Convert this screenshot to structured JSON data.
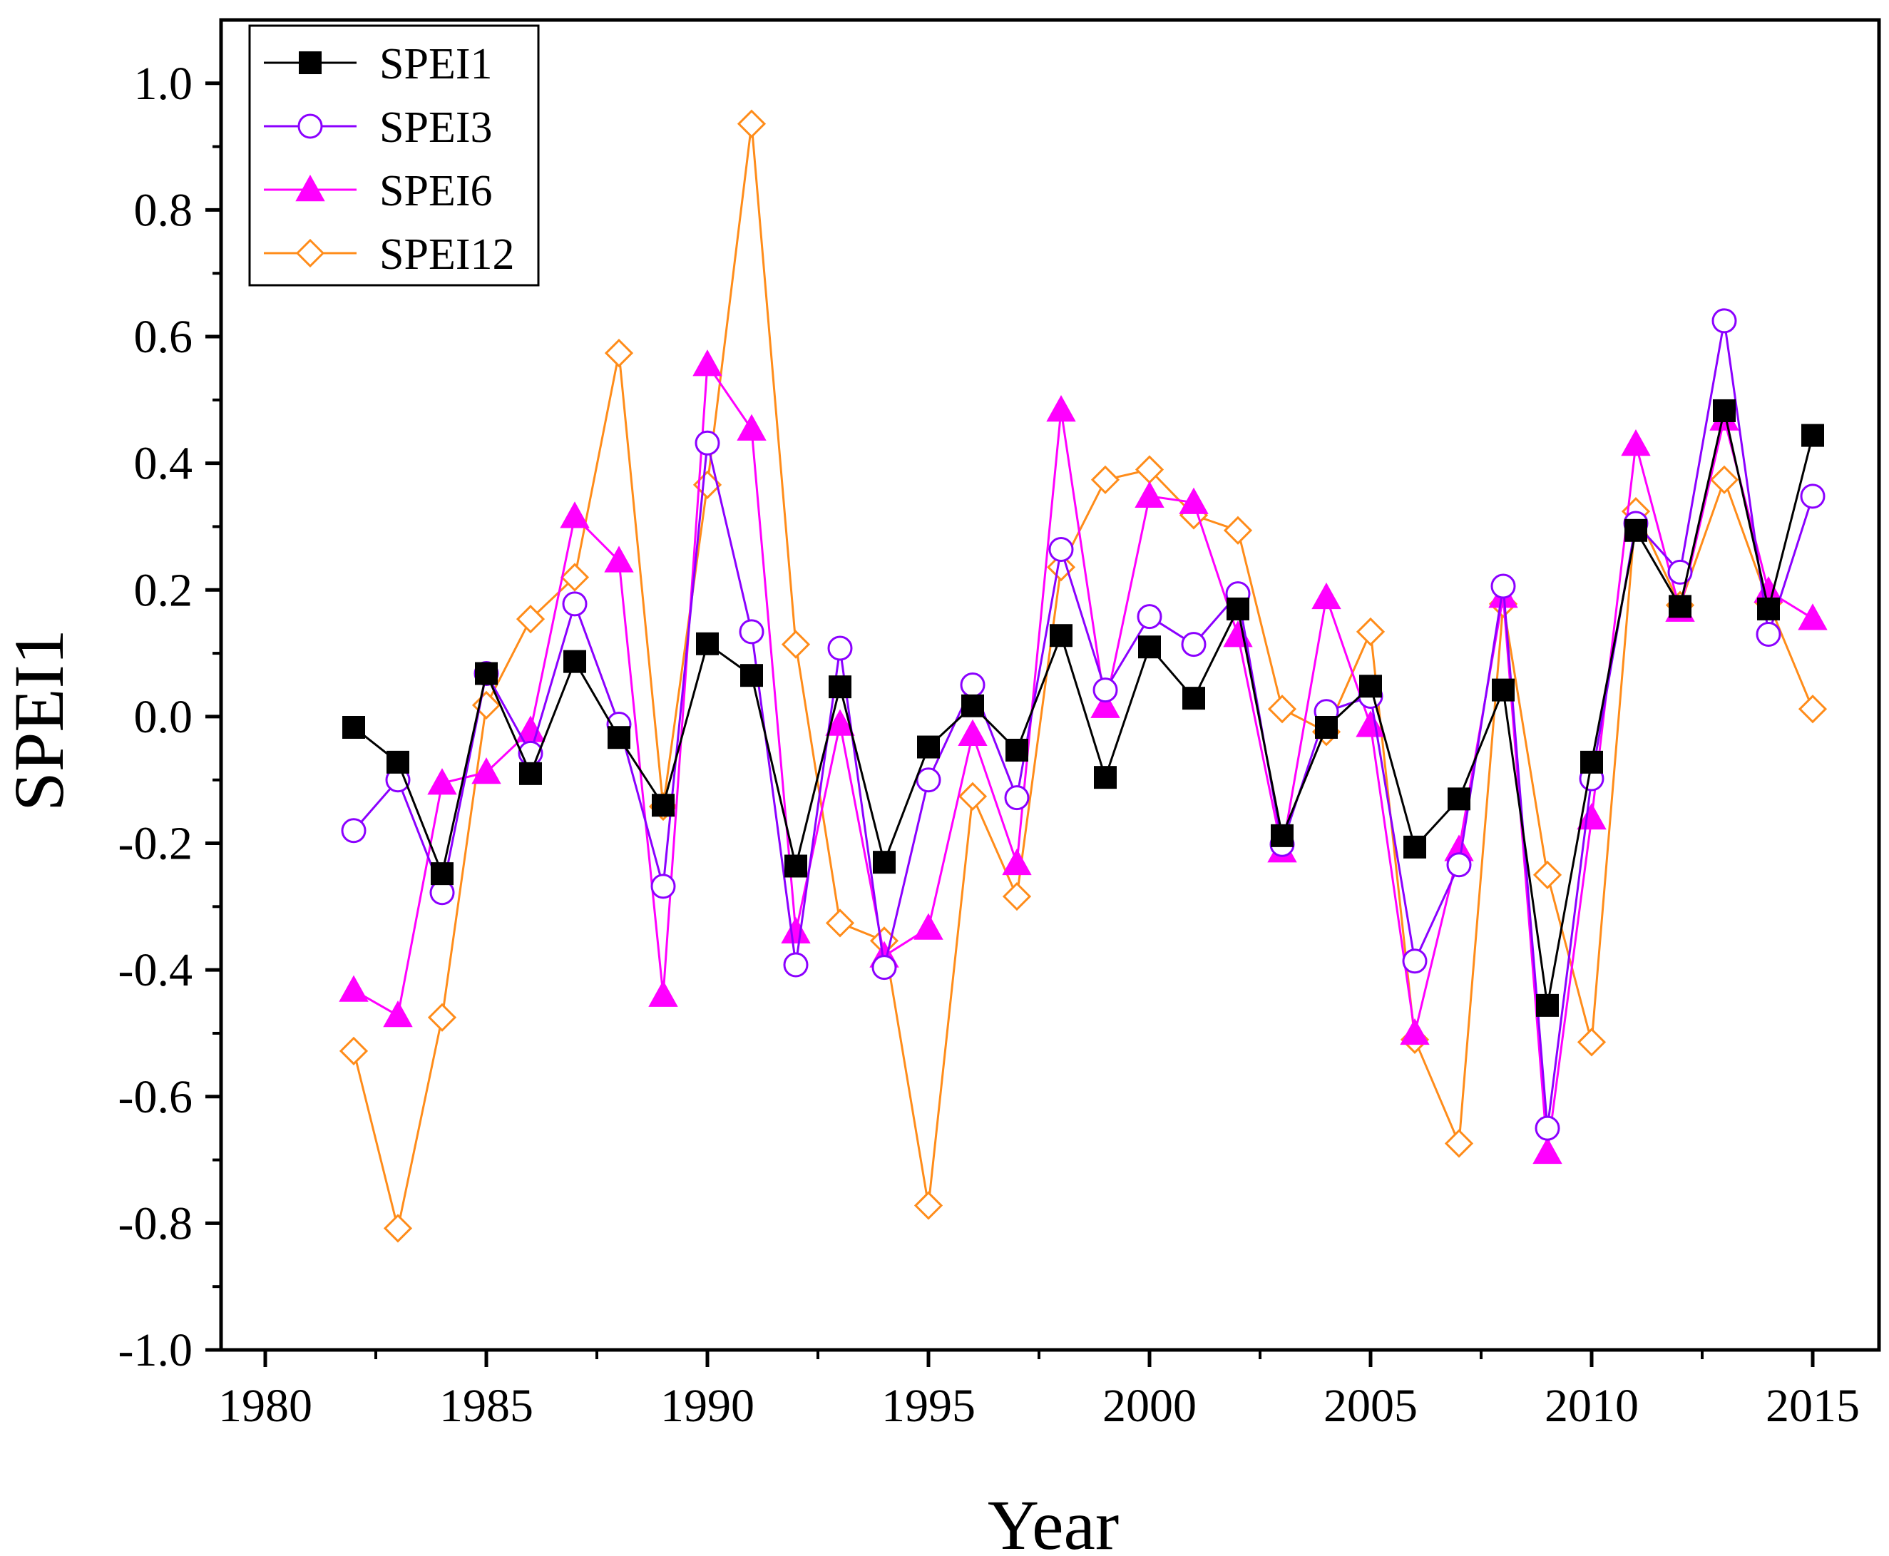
{
  "chart_data": {
    "type": "line",
    "title": "",
    "xlabel": "Year",
    "ylabel": "SPEI1",
    "xlim": [
      1979,
      2016.5
    ],
    "ylim": [
      -1.0,
      1.1
    ],
    "x_ticks": [
      1980,
      1985,
      1990,
      1995,
      2000,
      2005,
      2010,
      2015
    ],
    "y_ticks": [
      -1.0,
      -0.8,
      -0.6,
      -0.4,
      -0.2,
      0.0,
      0.2,
      0.4,
      0.6,
      0.8,
      1.0
    ],
    "y_tick_labels": [
      "-1.0",
      "-0.8",
      "-0.6",
      "-0.4",
      "-0.2",
      "0.0",
      "0.2",
      "0.4",
      "0.6",
      "0.8",
      "1.0"
    ],
    "grid": false,
    "legend_position": "top-left",
    "x": [
      1982,
      1983,
      1984,
      1985,
      1986,
      1987,
      1988,
      1989,
      1990,
      1991,
      1992,
      1993,
      1994,
      1995,
      1996,
      1997,
      1998,
      1999,
      2000,
      2001,
      2002,
      2003,
      2004,
      2005,
      2006,
      2007,
      2008,
      2009,
      2010,
      2011,
      2012,
      2013,
      2014,
      2015
    ],
    "series": [
      {
        "name": "SPEI1",
        "color": "#000000",
        "marker": "square-filled",
        "values": [
          -0.017,
          -0.072,
          -0.248,
          0.068,
          -0.09,
          0.087,
          -0.033,
          -0.14,
          0.115,
          0.065,
          -0.236,
          0.047,
          -0.23,
          -0.048,
          0.017,
          -0.053,
          0.128,
          -0.096,
          0.11,
          0.029,
          0.17,
          -0.188,
          -0.017,
          0.048,
          -0.206,
          -0.13,
          0.042,
          -0.456,
          -0.072,
          0.294,
          0.174,
          0.483,
          0.17,
          0.444
        ]
      },
      {
        "name": "SPEI3",
        "color": "#8B00FF",
        "marker": "circle-open",
        "values": [
          -0.18,
          -0.1,
          -0.278,
          0.068,
          -0.058,
          0.178,
          -0.012,
          -0.268,
          0.432,
          0.134,
          -0.392,
          0.108,
          -0.396,
          -0.1,
          0.05,
          -0.128,
          0.264,
          0.042,
          0.158,
          0.114,
          0.194,
          -0.202,
          0.008,
          0.032,
          -0.386,
          -0.234,
          0.206,
          -0.65,
          -0.098,
          0.305,
          0.228,
          0.625,
          0.13,
          0.348
        ]
      },
      {
        "name": "SPEI6",
        "color": "#FF00FF",
        "marker": "triangle-filled",
        "values": [
          -0.432,
          -0.472,
          -0.105,
          -0.088,
          -0.022,
          0.316,
          0.246,
          -0.44,
          0.556,
          0.454,
          -0.34,
          -0.012,
          -0.378,
          -0.334,
          -0.028,
          -0.232,
          0.484,
          0.016,
          0.348,
          0.338,
          0.128,
          -0.212,
          0.188,
          -0.014,
          -0.5,
          -0.21,
          0.19,
          -0.688,
          -0.16,
          0.43,
          0.168,
          0.47,
          0.198,
          0.155
        ]
      },
      {
        "name": "SPEI12",
        "color": "#FF8C1A",
        "marker": "diamond-open",
        "values": [
          -0.528,
          -0.808,
          -0.475,
          0.018,
          0.154,
          0.22,
          0.574,
          -0.142,
          0.366,
          0.936,
          0.114,
          -0.326,
          -0.354,
          -0.772,
          -0.126,
          -0.284,
          0.236,
          0.374,
          0.39,
          0.318,
          0.294,
          0.012,
          -0.024,
          0.134,
          -0.51,
          -0.674,
          0.178,
          -0.25,
          -0.514,
          0.324,
          0.176,
          0.374,
          0.18,
          0.012
        ]
      }
    ]
  }
}
